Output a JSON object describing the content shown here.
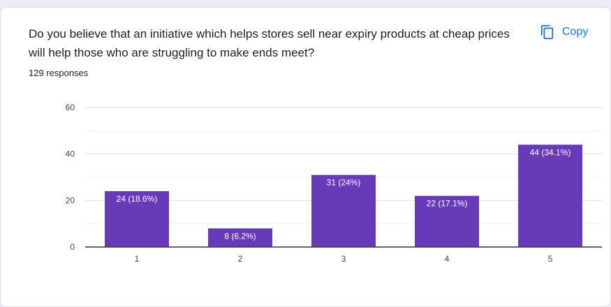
{
  "question": {
    "text": "Do you believe that an initiative which helps stores sell near expiry products at cheap prices will help those who are struggling to make ends meet?",
    "responses": "129 responses"
  },
  "copy_button": {
    "label": "Copy",
    "icon": "copy-icon"
  },
  "colors": {
    "bar": "#673ab7",
    "accent": "#1a73e8",
    "grid": "#e6e6e6",
    "axis": "#333333"
  },
  "chart_data": {
    "type": "bar",
    "categories": [
      "1",
      "2",
      "3",
      "4",
      "5"
    ],
    "values": [
      24,
      8,
      31,
      22,
      44
    ],
    "data_labels": [
      "24 (18.6%)",
      "8 (6.2%)",
      "31 (24%)",
      "22 (17.1%)",
      "44 (34.1%)"
    ],
    "y_ticks": [
      "0",
      "20",
      "40",
      "60"
    ],
    "ylim": [
      0,
      60
    ],
    "grid": true,
    "xlabel": "",
    "ylabel": "",
    "title": ""
  }
}
